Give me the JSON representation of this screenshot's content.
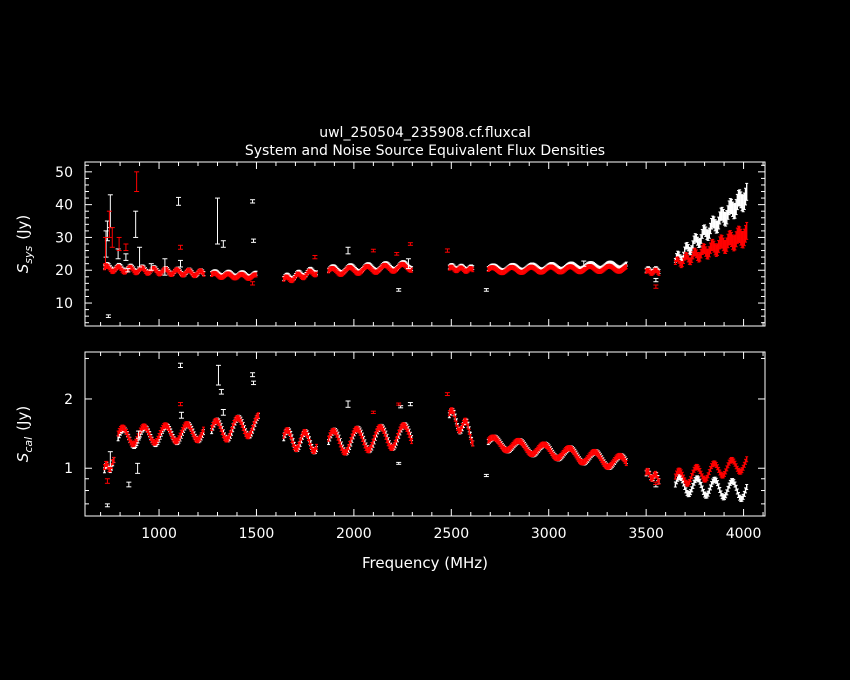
{
  "title": "uwl_250504_235908.cf.fluxcal",
  "subtitle": "System and Noise Source Equivalent Flux Densities",
  "colors": {
    "background": "#000000",
    "axes": "#ffffff",
    "series_a": "#ffffff",
    "series_b": "#ff0000"
  },
  "chart_data": [
    {
      "type": "scatter",
      "panel": "top",
      "ylabel_main": "S",
      "ylabel_sub": "sys",
      "ylabel_unit": "(Jy)",
      "xlim": [
        620,
        4110
      ],
      "ylim": [
        3,
        53
      ],
      "yticks": [
        10,
        20,
        30,
        40,
        50
      ],
      "ytick_labels": [
        "10",
        "20",
        "30",
        "40",
        "50"
      ],
      "series": [
        {
          "color": "#ffffff",
          "points": [
            {
              "x": 728,
              "y": 28,
              "e": 4
            },
            {
              "x": 735,
              "y": 32,
              "e": 3
            },
            {
              "x": 740,
              "y": 6,
              "e": 0.4
            },
            {
              "x": 750,
              "y": 38,
              "e": 5
            },
            {
              "x": 790,
              "y": 25,
              "e": 1.5
            },
            {
              "x": 830,
              "y": 24,
              "e": 1
            },
            {
              "x": 840,
              "y": 20,
              "e": 0.5
            },
            {
              "x": 880,
              "y": 34,
              "e": 4
            },
            {
              "x": 900,
              "y": 24,
              "e": 3
            },
            {
              "x": 960,
              "y": 21,
              "e": 1
            },
            {
              "x": 1030,
              "y": 21,
              "e": 2.5
            },
            {
              "x": 1100,
              "y": 41,
              "e": 1.2
            },
            {
              "x": 1110,
              "y": 22,
              "e": 1
            },
            {
              "x": 1300,
              "y": 35,
              "e": 7
            },
            {
              "x": 1330,
              "y": 28,
              "e": 1
            },
            {
              "x": 1480,
              "y": 41,
              "e": 0.5
            },
            {
              "x": 1485,
              "y": 29,
              "e": 0.5
            },
            {
              "x": 1970,
              "y": 26,
              "e": 1
            },
            {
              "x": 2230,
              "y": 14,
              "e": 0.4
            },
            {
              "x": 2280,
              "y": 22,
              "e": 1.5
            },
            {
              "x": 2680,
              "y": 14,
              "e": 0.4
            },
            {
              "x": 3180,
              "y": 22,
              "e": 0.8
            },
            {
              "x": 3550,
              "y": 17,
              "e": 0.5
            }
          ]
        },
        {
          "color": "#ff0000",
          "points": [
            {
              "x": 725,
              "y": 26,
              "e": 4
            },
            {
              "x": 745,
              "y": 34,
              "e": 4
            },
            {
              "x": 760,
              "y": 30,
              "e": 3
            },
            {
              "x": 795,
              "y": 28,
              "e": 2
            },
            {
              "x": 830,
              "y": 27,
              "e": 1
            },
            {
              "x": 885,
              "y": 47,
              "e": 3
            },
            {
              "x": 1110,
              "y": 27,
              "e": 0.6
            },
            {
              "x": 1480,
              "y": 16,
              "e": 0.5
            },
            {
              "x": 1800,
              "y": 24,
              "e": 0.5
            },
            {
              "x": 2100,
              "y": 26,
              "e": 0.4
            },
            {
              "x": 2220,
              "y": 25,
              "e": 0.4
            },
            {
              "x": 2290,
              "y": 28,
              "e": 0.4
            },
            {
              "x": 2480,
              "y": 26,
              "e": 0.5
            },
            {
              "x": 3550,
              "y": 15,
              "e": 0.5
            }
          ]
        }
      ],
      "bands": [
        {
          "color": "#ffffff",
          "segments": [
            {
              "x": [
                720,
                1230
              ],
              "y0": 21,
              "y1": 19,
              "amp": 0.8,
              "period": 60
            },
            {
              "x": [
                1270,
                1500
              ],
              "y0": 19,
              "y1": 18.5,
              "amp": 0.6,
              "period": 70
            },
            {
              "x": [
                1640,
                1810
              ],
              "y0": 17.5,
              "y1": 20,
              "amp": 0.8,
              "period": 60
            },
            {
              "x": [
                1870,
                2300
              ],
              "y0": 20,
              "y1": 21.5,
              "amp": 1,
              "period": 90
            },
            {
              "x": [
                2490,
                2610
              ],
              "y0": 21,
              "y1": 20.5,
              "amp": 0.5,
              "period": 50
            },
            {
              "x": [
                2690,
                3400
              ],
              "y0": 20.5,
              "y1": 21.5,
              "amp": 0.8,
              "period": 100
            },
            {
              "x": [
                3500,
                3570
              ],
              "y0": 20,
              "y1": 20,
              "amp": 0.5,
              "period": 40
            },
            {
              "x": [
                3650,
                4020
              ],
              "y0": 23,
              "y1": 43,
              "amp": 1.5,
              "period": 45
            }
          ]
        },
        {
          "color": "#ff0000",
          "segments": [
            {
              "x": [
                720,
                1230
              ],
              "y0": 20.5,
              "y1": 19,
              "amp": 0.8,
              "period": 60
            },
            {
              "x": [
                1270,
                1500
              ],
              "y0": 18.5,
              "y1": 18,
              "amp": 0.6,
              "period": 70
            },
            {
              "x": [
                1640,
                1810
              ],
              "y0": 17,
              "y1": 19.5,
              "amp": 0.8,
              "period": 60
            },
            {
              "x": [
                1870,
                2300
              ],
              "y0": 19.5,
              "y1": 21,
              "amp": 1,
              "period": 90
            },
            {
              "x": [
                2490,
                2610
              ],
              "y0": 20.5,
              "y1": 20,
              "amp": 0.5,
              "period": 50
            },
            {
              "x": [
                2690,
                3400
              ],
              "y0": 20,
              "y1": 20.5,
              "amp": 0.8,
              "period": 100
            },
            {
              "x": [
                3500,
                3570
              ],
              "y0": 19.5,
              "y1": 19.5,
              "amp": 0.5,
              "period": 40
            },
            {
              "x": [
                3650,
                4020
              ],
              "y0": 22,
              "y1": 31,
              "amp": 1.2,
              "period": 45
            }
          ]
        }
      ]
    },
    {
      "type": "scatter",
      "panel": "bottom",
      "ylabel_main": "S",
      "ylabel_sub": "cal",
      "ylabel_unit": "(Jy)",
      "xlabel": "Frequency (MHz)",
      "xlim": [
        620,
        4110
      ],
      "ylim": [
        0.62,
        3.2
      ],
      "log_y": true,
      "yticks": [
        1,
        2
      ],
      "ytick_labels": [
        "1",
        "2"
      ],
      "xticks": [
        1000,
        1500,
        2000,
        2500,
        3000,
        3500,
        4000
      ],
      "xtick_labels": [
        "1000",
        "1500",
        "2000",
        "2500",
        "3000",
        "3500",
        "4000"
      ],
      "series": [
        {
          "color": "#ffffff",
          "points": [
            {
              "x": 735,
              "y": 0.69,
              "e": 0.01
            },
            {
              "x": 750,
              "y": 1.1,
              "e": 0.08
            },
            {
              "x": 845,
              "y": 0.85,
              "e": 0.02
            },
            {
              "x": 890,
              "y": 1.0,
              "e": 0.05
            },
            {
              "x": 895,
              "y": 1.4,
              "e": 0.05
            },
            {
              "x": 1110,
              "y": 2.8,
              "e": 0.06
            },
            {
              "x": 1115,
              "y": 1.7,
              "e": 0.05
            },
            {
              "x": 1305,
              "y": 2.55,
              "e": 0.25
            },
            {
              "x": 1320,
              "y": 2.15,
              "e": 0.05
            },
            {
              "x": 1330,
              "y": 1.75,
              "e": 0.05
            },
            {
              "x": 1480,
              "y": 2.55,
              "e": 0.05
            },
            {
              "x": 1485,
              "y": 2.35,
              "e": 0.04
            },
            {
              "x": 1970,
              "y": 1.9,
              "e": 0.06
            },
            {
              "x": 2230,
              "y": 1.05,
              "e": 0.01
            },
            {
              "x": 2240,
              "y": 1.85,
              "e": 0.02
            },
            {
              "x": 2290,
              "y": 1.9,
              "e": 0.03
            },
            {
              "x": 2680,
              "y": 0.93,
              "e": 0.01
            },
            {
              "x": 3550,
              "y": 0.84,
              "e": 0.01
            }
          ]
        },
        {
          "color": "#ff0000",
          "points": [
            {
              "x": 735,
              "y": 0.88,
              "e": 0.02
            },
            {
              "x": 1110,
              "y": 1.9,
              "e": 0.03
            },
            {
              "x": 2100,
              "y": 1.75,
              "e": 0.02
            },
            {
              "x": 2230,
              "y": 1.9,
              "e": 0.02
            },
            {
              "x": 2480,
              "y": 2.1,
              "e": 0.03
            },
            {
              "x": 3550,
              "y": 0.86,
              "e": 0.01
            }
          ]
        }
      ],
      "bands": [
        {
          "color": "#ffffff",
          "segments": [
            {
              "x": [
                720,
                770
              ],
              "y0": 0.98,
              "y1": 1.05,
              "amp": 0.04,
              "period": 40
            },
            {
              "x": [
                790,
                1230
              ],
              "y0": 1.35,
              "y1": 1.45,
              "amp": 0.12,
              "period": 110
            },
            {
              "x": [
                1270,
                1510
              ],
              "y0": 1.45,
              "y1": 1.55,
              "amp": 0.15,
              "period": 110
            },
            {
              "x": [
                1640,
                1810
              ],
              "y0": 1.35,
              "y1": 1.3,
              "amp": 0.12,
              "period": 90
            },
            {
              "x": [
                1870,
                2300
              ],
              "y0": 1.3,
              "y1": 1.4,
              "amp": 0.15,
              "period": 120
            },
            {
              "x": [
                2490,
                2610
              ],
              "y0": 1.7,
              "y1": 1.4,
              "amp": 0.12,
              "period": 70
            },
            {
              "x": [
                2690,
                3400
              ],
              "y0": 1.3,
              "y1": 1.05,
              "amp": 0.07,
              "period": 130
            },
            {
              "x": [
                3500,
                3570
              ],
              "y0": 0.95,
              "y1": 0.9,
              "amp": 0.03,
              "period": 40
            },
            {
              "x": [
                3650,
                4020
              ],
              "y0": 0.85,
              "y1": 0.8,
              "amp": 0.07,
              "period": 90
            }
          ]
        },
        {
          "color": "#ff0000",
          "segments": [
            {
              "x": [
                720,
                770
              ],
              "y0": 1.0,
              "y1": 1.05,
              "amp": 0.04,
              "period": 40
            },
            {
              "x": [
                790,
                1230
              ],
              "y0": 1.38,
              "y1": 1.45,
              "amp": 0.12,
              "period": 110
            },
            {
              "x": [
                1270,
                1510
              ],
              "y0": 1.45,
              "y1": 1.55,
              "amp": 0.15,
              "period": 110
            },
            {
              "x": [
                1640,
                1810
              ],
              "y0": 1.35,
              "y1": 1.3,
              "amp": 0.12,
              "period": 90
            },
            {
              "x": [
                1870,
                2300
              ],
              "y0": 1.3,
              "y1": 1.4,
              "amp": 0.15,
              "period": 120
            },
            {
              "x": [
                2490,
                2610
              ],
              "y0": 1.7,
              "y1": 1.4,
              "amp": 0.12,
              "period": 70
            },
            {
              "x": [
                2690,
                3400
              ],
              "y0": 1.3,
              "y1": 1.05,
              "amp": 0.07,
              "period": 130
            },
            {
              "x": [
                3500,
                3570
              ],
              "y0": 0.95,
              "y1": 0.9,
              "amp": 0.03,
              "period": 40
            },
            {
              "x": [
                3650,
                4020
              ],
              "y0": 0.9,
              "y1": 1.05,
              "amp": 0.07,
              "period": 90
            }
          ]
        }
      ]
    }
  ]
}
